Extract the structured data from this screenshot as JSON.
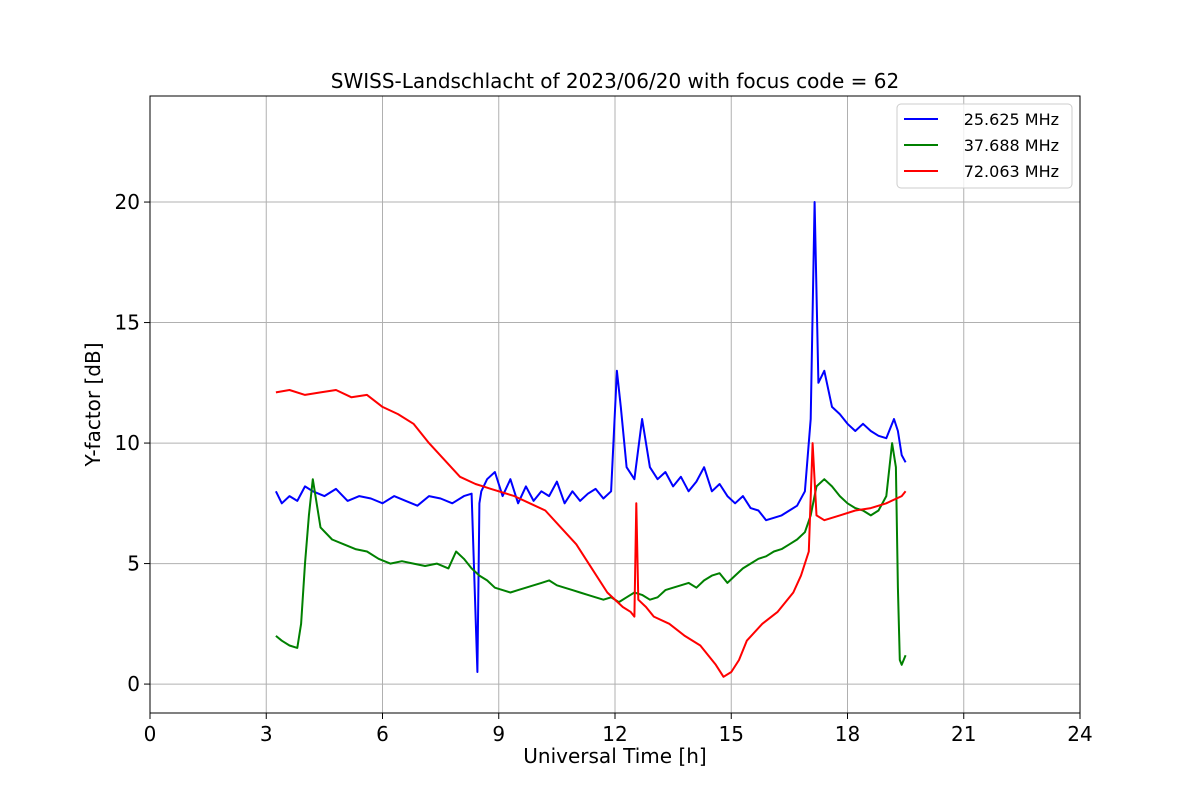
{
  "chart_data": {
    "type": "line",
    "title": "SWISS-Landschlacht of 2023/06/20 with focus code = 62",
    "xlabel": "Universal Time [h]",
    "ylabel": "Y-factor [dB]",
    "xlim": [
      0,
      24
    ],
    "ylim": [
      -1.2,
      24.4
    ],
    "xticks": [
      0,
      3,
      6,
      9,
      12,
      15,
      18,
      21,
      24
    ],
    "yticks": [
      0,
      5,
      10,
      15,
      20
    ],
    "grid": true,
    "legend_position": "top-right",
    "series": [
      {
        "name": "25.625 MHz",
        "color": "#0000ff",
        "x": [
          3.25,
          3.4,
          3.6,
          3.8,
          4.0,
          4.2,
          4.5,
          4.8,
          5.1,
          5.4,
          5.7,
          6.0,
          6.3,
          6.6,
          6.9,
          7.2,
          7.5,
          7.8,
          8.1,
          8.3,
          8.45,
          8.5,
          8.55,
          8.7,
          8.9,
          9.1,
          9.3,
          9.5,
          9.7,
          9.9,
          10.1,
          10.3,
          10.5,
          10.7,
          10.9,
          11.1,
          11.3,
          11.5,
          11.7,
          11.9,
          12.05,
          12.15,
          12.3,
          12.5,
          12.7,
          12.9,
          13.1,
          13.3,
          13.5,
          13.7,
          13.9,
          14.1,
          14.3,
          14.5,
          14.7,
          14.9,
          15.1,
          15.3,
          15.5,
          15.7,
          15.9,
          16.1,
          16.3,
          16.5,
          16.7,
          16.9,
          17.05,
          17.15,
          17.25,
          17.4,
          17.6,
          17.8,
          18.0,
          18.2,
          18.4,
          18.6,
          18.8,
          19.0,
          19.2,
          19.3,
          19.4,
          19.5
        ],
        "y": [
          8.0,
          7.5,
          7.8,
          7.6,
          8.2,
          8.0,
          7.8,
          8.1,
          7.6,
          7.8,
          7.7,
          7.5,
          7.8,
          7.6,
          7.4,
          7.8,
          7.7,
          7.5,
          7.8,
          7.9,
          0.5,
          7.5,
          8.0,
          8.5,
          8.8,
          7.8,
          8.5,
          7.5,
          8.2,
          7.6,
          8.0,
          7.8,
          8.4,
          7.5,
          8.0,
          7.6,
          7.9,
          8.1,
          7.7,
          8.0,
          13.0,
          11.5,
          9.0,
          8.5,
          11.0,
          9.0,
          8.5,
          8.8,
          8.2,
          8.6,
          8.0,
          8.4,
          9.0,
          8.0,
          8.3,
          7.8,
          7.5,
          7.8,
          7.3,
          7.2,
          6.8,
          6.9,
          7.0,
          7.2,
          7.4,
          8.0,
          11.0,
          20.0,
          12.5,
          13.0,
          11.5,
          11.2,
          10.8,
          10.5,
          10.8,
          10.5,
          10.3,
          10.2,
          11.0,
          10.5,
          9.5,
          9.2
        ]
      },
      {
        "name": "37.688 MHz",
        "color": "#008000",
        "x": [
          3.25,
          3.4,
          3.6,
          3.8,
          3.9,
          4.0,
          4.1,
          4.2,
          4.4,
          4.7,
          5.0,
          5.3,
          5.6,
          5.9,
          6.2,
          6.5,
          6.8,
          7.1,
          7.4,
          7.7,
          7.9,
          8.1,
          8.3,
          8.5,
          8.7,
          8.9,
          9.1,
          9.3,
          9.5,
          9.7,
          9.9,
          10.1,
          10.3,
          10.5,
          10.7,
          10.9,
          11.1,
          11.3,
          11.5,
          11.7,
          11.9,
          12.1,
          12.3,
          12.5,
          12.7,
          12.9,
          13.1,
          13.3,
          13.5,
          13.7,
          13.9,
          14.1,
          14.3,
          14.5,
          14.7,
          14.9,
          15.1,
          15.3,
          15.5,
          15.7,
          15.9,
          16.1,
          16.3,
          16.5,
          16.7,
          16.9,
          17.05,
          17.2,
          17.4,
          17.6,
          17.8,
          18.0,
          18.2,
          18.4,
          18.6,
          18.8,
          19.0,
          19.15,
          19.25,
          19.3,
          19.35,
          19.4,
          19.5
        ],
        "y": [
          2.0,
          1.8,
          1.6,
          1.5,
          2.5,
          5.0,
          7.0,
          8.5,
          6.5,
          6.0,
          5.8,
          5.6,
          5.5,
          5.2,
          5.0,
          5.1,
          5.0,
          4.9,
          5.0,
          4.8,
          5.5,
          5.2,
          4.8,
          4.5,
          4.3,
          4.0,
          3.9,
          3.8,
          3.9,
          4.0,
          4.1,
          4.2,
          4.3,
          4.1,
          4.0,
          3.9,
          3.8,
          3.7,
          3.6,
          3.5,
          3.6,
          3.4,
          3.6,
          3.8,
          3.7,
          3.5,
          3.6,
          3.9,
          4.0,
          4.1,
          4.2,
          4.0,
          4.3,
          4.5,
          4.6,
          4.2,
          4.5,
          4.8,
          5.0,
          5.2,
          5.3,
          5.5,
          5.6,
          5.8,
          6.0,
          6.3,
          7.0,
          8.2,
          8.5,
          8.2,
          7.8,
          7.5,
          7.3,
          7.2,
          7.0,
          7.2,
          7.8,
          10.0,
          9.0,
          4.0,
          1.0,
          0.8,
          1.2
        ]
      },
      {
        "name": "72.063 MHz",
        "color": "#ff0000",
        "x": [
          3.25,
          3.6,
          4.0,
          4.4,
          4.8,
          5.2,
          5.6,
          6.0,
          6.4,
          6.8,
          7.2,
          7.6,
          8.0,
          8.4,
          8.6,
          8.8,
          9.0,
          9.4,
          9.8,
          10.2,
          10.6,
          11.0,
          11.4,
          11.8,
          12.2,
          12.4,
          12.5,
          12.55,
          12.6,
          12.8,
          13.0,
          13.4,
          13.8,
          14.2,
          14.6,
          14.8,
          15.0,
          15.2,
          15.4,
          15.8,
          16.2,
          16.6,
          16.8,
          17.0,
          17.1,
          17.2,
          17.4,
          17.8,
          18.2,
          18.6,
          19.0,
          19.4,
          19.5
        ],
        "y": [
          12.1,
          12.2,
          12.0,
          12.1,
          12.2,
          11.9,
          12.0,
          11.5,
          11.2,
          10.8,
          10.0,
          9.3,
          8.6,
          8.3,
          8.2,
          8.1,
          8.0,
          7.8,
          7.5,
          7.2,
          6.5,
          5.8,
          4.8,
          3.8,
          3.2,
          3.0,
          2.8,
          7.5,
          3.5,
          3.2,
          2.8,
          2.5,
          2.0,
          1.6,
          0.8,
          0.3,
          0.5,
          1.0,
          1.8,
          2.5,
          3.0,
          3.8,
          4.5,
          5.5,
          10.0,
          7.0,
          6.8,
          7.0,
          7.2,
          7.3,
          7.5,
          7.8,
          8.0
        ]
      }
    ]
  }
}
